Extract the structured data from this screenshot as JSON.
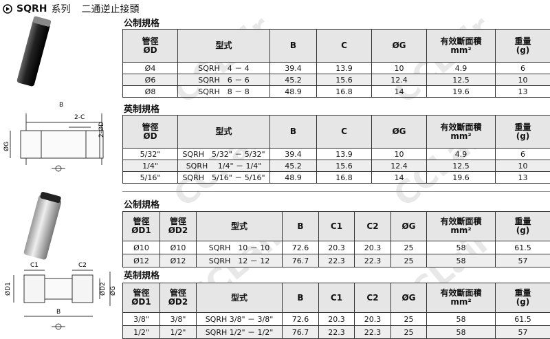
{
  "header": {
    "title": "SQRH",
    "series": "系列",
    "description": "二通逆止接頭"
  },
  "watermark": "CCLair",
  "figures": [
    {
      "labels": [
        "B",
        "2-C",
        "2-ØD",
        "ØG"
      ]
    },
    {
      "labels": [
        "C1",
        "C2",
        "ØD1",
        "ØD2",
        "ØG",
        "B"
      ]
    }
  ],
  "sections": [
    {
      "title": "公制規格",
      "columns": [
        [
          "管徑",
          "ØD"
        ],
        [
          "型式"
        ],
        [
          "B"
        ],
        [
          "C"
        ],
        [
          "ØG"
        ],
        [
          "有效斷面積",
          "mm²"
        ],
        [
          "重量",
          "(g)"
        ]
      ],
      "rows": [
        [
          "Ø4",
          "SQRH　4 － 4",
          "39.4",
          "13.9",
          "10",
          "4.9",
          "6"
        ],
        [
          "Ø6",
          "SQRH　6 － 6",
          "45.2",
          "15.6",
          "12.4",
          "12.5",
          "10"
        ],
        [
          "Ø8",
          "SQRH　8 － 8",
          "48.9",
          "16.8",
          "14",
          "19.6",
          "13"
        ]
      ]
    },
    {
      "title": "英制規格",
      "columns": [
        [
          "管徑",
          "ØD"
        ],
        [
          "型式"
        ],
        [
          "B"
        ],
        [
          "C"
        ],
        [
          "ØG"
        ],
        [
          "有效斷面積",
          "mm²"
        ],
        [
          "重量",
          "(g)"
        ]
      ],
      "rows": [
        [
          "5/32\"",
          "SQRH　5/32\" － 5/32\"",
          "39.4",
          "13.9",
          "10",
          "4.9",
          "6"
        ],
        [
          "1/4\"",
          "SQRH　 1/4\" － 1/4\"",
          "45.2",
          "15.6",
          "12.4",
          "12.5",
          "10"
        ],
        [
          "5/16\"",
          "SQRH　5/16\" － 5/16\"",
          "48.9",
          "16.8",
          "14",
          "19.6",
          "13"
        ]
      ]
    },
    {
      "title": "公制規格",
      "columns": [
        [
          "管徑",
          "ØD1"
        ],
        [
          "管徑",
          "ØD2"
        ],
        [
          "型式"
        ],
        [
          "B"
        ],
        [
          "C1"
        ],
        [
          "C2"
        ],
        [
          "ØG"
        ],
        [
          "有效斷面積",
          "mm²"
        ],
        [
          "重量",
          "(g)"
        ]
      ],
      "rows": [
        [
          "Ø10",
          "Ø10",
          "SQRH　10 － 10",
          "72.6",
          "20.3",
          "20.3",
          "25",
          "58",
          "61.5"
        ],
        [
          "Ø12",
          "Ø12",
          "SQRH　12 － 12",
          "76.7",
          "22.3",
          "22.3",
          "25",
          "58",
          "57"
        ]
      ]
    },
    {
      "title": "英制規格",
      "columns": [
        [
          "管徑",
          "ØD1"
        ],
        [
          "管徑",
          "ØD2"
        ],
        [
          "型式"
        ],
        [
          "B"
        ],
        [
          "C1"
        ],
        [
          "C2"
        ],
        [
          "ØG"
        ],
        [
          "有效斷面積",
          "mm²"
        ],
        [
          "重量",
          "(g)"
        ]
      ],
      "rows": [
        [
          "3/8\"",
          "3/8\"",
          "SQRH 3/8\" － 3/8\"",
          "72.6",
          "20.3",
          "20.3",
          "25",
          "58",
          "61.5"
        ],
        [
          "1/2\"",
          "1/2\"",
          "SQRH 1/2\" － 1/2\"",
          "76.7",
          "22.3",
          "22.3",
          "25",
          "58",
          "57"
        ]
      ]
    }
  ]
}
